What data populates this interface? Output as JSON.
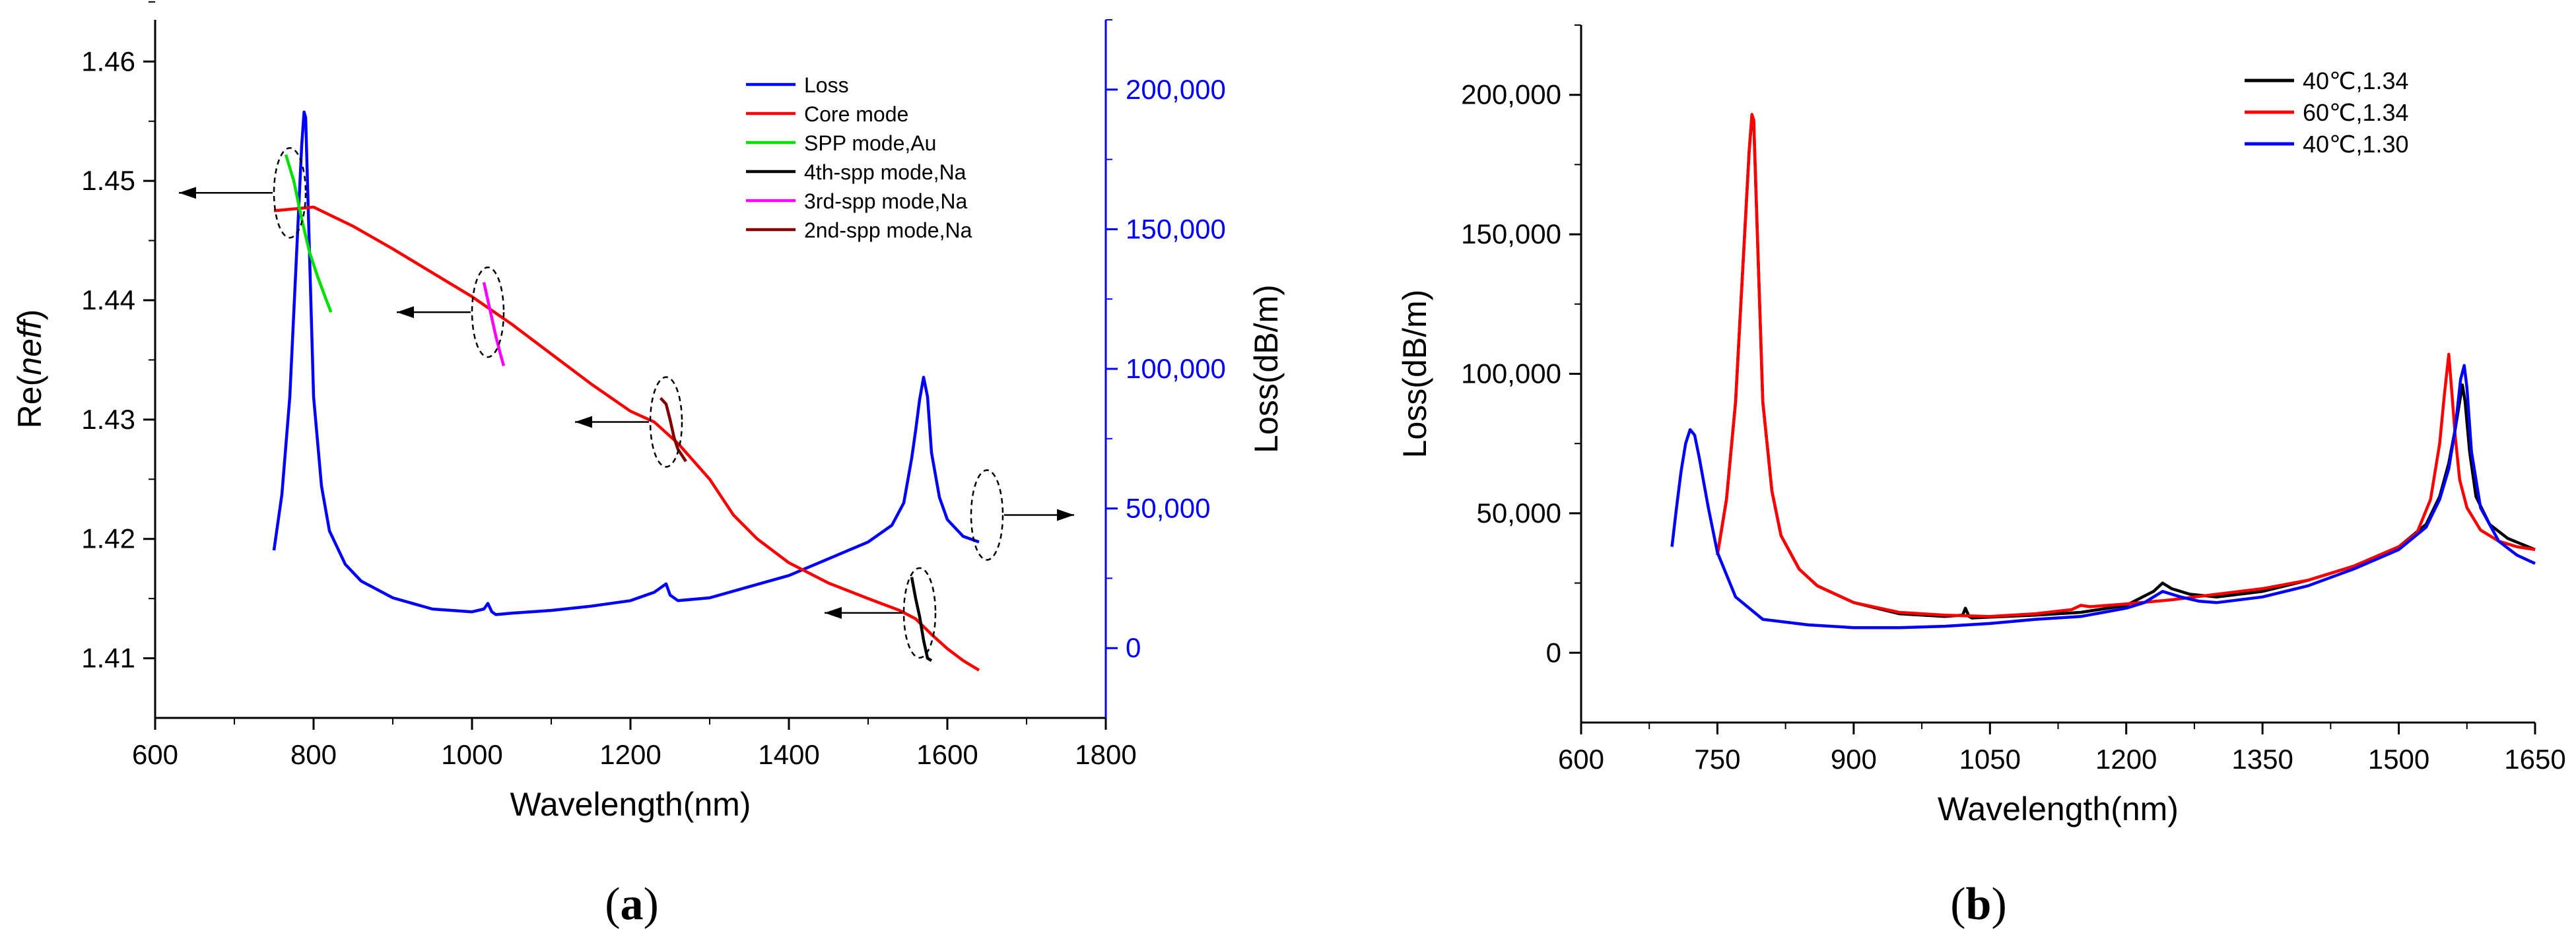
{
  "chart_data": [
    {
      "panel": "(a)",
      "type": "line",
      "xlabel": "Wavelength(nm)",
      "ylabel_left": "Re(neff)",
      "ylabel_left_plain": "Re(",
      "ylabel_left_italic": "neff",
      "ylabel_left_close": ")",
      "ylabel_right": "Loss(dB/m)",
      "xlim": [
        600,
        1800
      ],
      "xticks": [
        600,
        800,
        1000,
        1200,
        1400,
        1600,
        1800
      ],
      "ylim_left": [
        1.405,
        1.4635
      ],
      "yticks_left": [
        "1.41",
        "1.42",
        "1.43",
        "1.44",
        "1.45",
        "1.46"
      ],
      "ylim_right": [
        -25000,
        225000
      ],
      "yticks_right": [
        "0",
        "50,000",
        "100,000",
        "150,000",
        "200,000"
      ],
      "right_axis_color": "#0000ff",
      "legend_position": "top-right",
      "series": [
        {
          "name": "Loss",
          "axis": "right",
          "color": "#0000ff",
          "x": [
            750,
            760,
            770,
            775,
            780,
            785,
            788,
            790,
            793,
            797,
            800,
            810,
            820,
            840,
            860,
            900,
            950,
            1000,
            1015,
            1020,
            1025,
            1030,
            1050,
            1100,
            1150,
            1200,
            1220,
            1230,
            1240,
            1245,
            1250,
            1260,
            1300,
            1350,
            1400,
            1450,
            1500,
            1530,
            1545,
            1550,
            1555,
            1560,
            1565,
            1570,
            1575,
            1580,
            1590,
            1600,
            1620,
            1640
          ],
          "y": [
            35000,
            55000,
            90000,
            120000,
            150000,
            180000,
            192000,
            190000,
            160000,
            120000,
            90000,
            58000,
            42000,
            30000,
            24000,
            18000,
            14000,
            13000,
            14000,
            16000,
            13000,
            12000,
            12500,
            13500,
            15000,
            17000,
            19000,
            20000,
            22000,
            23000,
            19000,
            17000,
            18000,
            22000,
            26000,
            32000,
            38000,
            44000,
            52000,
            60000,
            68000,
            78000,
            89000,
            97000,
            90000,
            70000,
            54000,
            46000,
            40000,
            38000
          ]
        },
        {
          "name": "Core mode",
          "axis": "left",
          "color": "#ff0000",
          "x": [
            750,
            800,
            850,
            900,
            950,
            1000,
            1050,
            1100,
            1150,
            1200,
            1230,
            1260,
            1300,
            1330,
            1360,
            1400,
            1450,
            1500,
            1540,
            1560,
            1580,
            1600,
            1620,
            1640
          ],
          "y": [
            1.4475,
            1.4478,
            1.4462,
            1.4443,
            1.4423,
            1.4403,
            1.438,
            1.4355,
            1.433,
            1.4307,
            1.4298,
            1.428,
            1.425,
            1.422,
            1.42,
            1.418,
            1.4163,
            1.415,
            1.414,
            1.4133,
            1.412,
            1.4108,
            1.4098,
            1.409
          ]
        },
        {
          "name": "SPP mode,Au",
          "axis": "left",
          "color": "#00e000",
          "x": [
            765,
            775,
            785,
            795,
            805,
            815,
            822
          ],
          "y": [
            1.4522,
            1.45,
            1.4468,
            1.444,
            1.442,
            1.4402,
            1.439
          ]
        },
        {
          "name": "4th-spp mode,Na",
          "axis": "left",
          "color": "#000000",
          "x": [
            1555,
            1560,
            1565,
            1570,
            1575,
            1580
          ],
          "y": [
            1.4168,
            1.415,
            1.4135,
            1.4115,
            1.41,
            1.4098
          ]
        },
        {
          "name": "3rd-spp mode,Na",
          "axis": "left",
          "color": "#ff00ff",
          "x": [
            1015,
            1020,
            1025,
            1030,
            1035,
            1040
          ],
          "y": [
            1.4415,
            1.44,
            1.4385,
            1.437,
            1.4357,
            1.4345
          ]
        },
        {
          "name": "2nd-spp mode,Na",
          "axis": "left",
          "color": "#800000",
          "x": [
            1238,
            1245,
            1250,
            1255,
            1260,
            1265,
            1270
          ],
          "y": [
            1.4318,
            1.4313,
            1.43,
            1.4285,
            1.4275,
            1.427,
            1.4265
          ]
        }
      ],
      "annotations": [
        {
          "type": "ellipse-arrow",
          "center": [
            770,
            1.449
          ],
          "arrow_to": [
            630,
            1.449
          ],
          "direction": "left"
        },
        {
          "type": "ellipse-arrow",
          "center": [
            1020,
            1.439
          ],
          "arrow_to": [
            905,
            1.439
          ],
          "direction": "left"
        },
        {
          "type": "ellipse-arrow",
          "center": [
            1245,
            1.4298
          ],
          "arrow_to": [
            1130,
            1.4298
          ],
          "direction": "left"
        },
        {
          "type": "ellipse-arrow",
          "center": [
            1565,
            1.4138
          ],
          "arrow_to": [
            1445,
            1.4138
          ],
          "direction": "left"
        },
        {
          "type": "ellipse-arrow",
          "center": [
            1650,
            1.422
          ],
          "arrow_to": [
            1760,
            1.422
          ],
          "direction": "right"
        }
      ]
    },
    {
      "panel": "(b)",
      "type": "line",
      "xlabel": "Wavelength(nm)",
      "ylabel": "Loss(dB/m)",
      "xlim": [
        600,
        1650
      ],
      "xticks": [
        "600",
        "750",
        "900",
        "1050",
        "1200",
        "1350",
        "1500",
        "1650"
      ],
      "ylim": [
        -25000,
        225000
      ],
      "yticks": [
        "0",
        "50,000",
        "100,000",
        "150,000",
        "200,000"
      ],
      "legend_position": "top-right",
      "series": [
        {
          "name": "40℃,1.34",
          "color": "#000000",
          "x": [
            750,
            760,
            770,
            775,
            780,
            785,
            788,
            790,
            793,
            797,
            800,
            810,
            820,
            840,
            860,
            900,
            950,
            1000,
            1020,
            1023,
            1027,
            1030,
            1050,
            1100,
            1150,
            1200,
            1230,
            1240,
            1250,
            1270,
            1300,
            1350,
            1400,
            1450,
            1500,
            1530,
            1545,
            1555,
            1562,
            1568,
            1570,
            1573,
            1578,
            1585,
            1600,
            1620,
            1650
          ],
          "y": [
            35000,
            55000,
            90000,
            120000,
            150000,
            180000,
            192000,
            190000,
            160000,
            120000,
            90000,
            58000,
            42000,
            30000,
            24000,
            18000,
            14000,
            13000,
            13500,
            16000,
            13000,
            12500,
            12800,
            13500,
            14500,
            17000,
            22000,
            25000,
            23000,
            21000,
            20000,
            22000,
            26000,
            31000,
            38000,
            46000,
            56000,
            68000,
            80000,
            92000,
            96000,
            90000,
            72000,
            56000,
            46000,
            41000,
            37000
          ]
        },
        {
          "name": "60℃,1.34",
          "color": "#ff0000",
          "x": [
            750,
            760,
            770,
            775,
            780,
            785,
            788,
            790,
            793,
            797,
            800,
            810,
            820,
            840,
            860,
            900,
            950,
            1000,
            1050,
            1100,
            1140,
            1150,
            1160,
            1200,
            1250,
            1300,
            1350,
            1400,
            1450,
            1500,
            1520,
            1535,
            1545,
            1550,
            1555,
            1558,
            1562,
            1567,
            1575,
            1590,
            1610,
            1630,
            1650
          ],
          "y": [
            35000,
            55000,
            90000,
            120000,
            150000,
            180000,
            193000,
            191000,
            160000,
            120000,
            90000,
            58000,
            42000,
            30000,
            24000,
            18000,
            14500,
            13500,
            13000,
            14000,
            15500,
            17000,
            16500,
            17500,
            19000,
            21000,
            23000,
            26000,
            31000,
            38000,
            43000,
            55000,
            75000,
            92000,
            107000,
            95000,
            78000,
            62000,
            52000,
            44000,
            40000,
            38000,
            37000
          ]
        },
        {
          "name": "40℃,1.30",
          "color": "#0000ff",
          "x": [
            700,
            705,
            710,
            715,
            720,
            725,
            730,
            740,
            750,
            770,
            800,
            850,
            900,
            950,
            1000,
            1050,
            1100,
            1150,
            1200,
            1220,
            1240,
            1260,
            1280,
            1300,
            1350,
            1400,
            1450,
            1500,
            1530,
            1545,
            1555,
            1562,
            1568,
            1572,
            1575,
            1580,
            1590,
            1610,
            1630,
            1650
          ],
          "y": [
            38000,
            52000,
            65000,
            75000,
            80000,
            78000,
            70000,
            52000,
            36000,
            20000,
            12000,
            10000,
            9000,
            9000,
            9500,
            10500,
            12000,
            13000,
            16000,
            18000,
            22000,
            20000,
            18500,
            18000,
            20000,
            24000,
            30000,
            37000,
            45000,
            55000,
            66000,
            80000,
            98000,
            103000,
            95000,
            72000,
            52000,
            40000,
            35000,
            32000
          ]
        }
      ]
    }
  ],
  "panels": {
    "a": {
      "label_open": "(",
      "label_letter": "a",
      "label_close": ")"
    },
    "b": {
      "label_open": "(",
      "label_letter": "b",
      "label_close": ")"
    }
  }
}
